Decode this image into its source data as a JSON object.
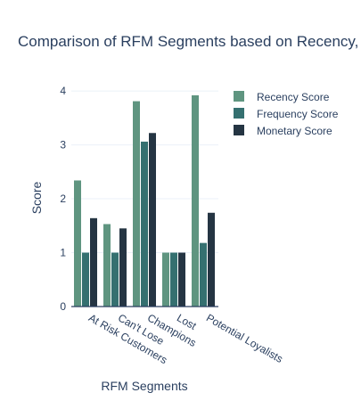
{
  "chart_data": {
    "type": "bar",
    "title": "Comparison of RFM Segments based on Recency, Frequency, and Monetary Scores",
    "xlabel": "RFM Segments",
    "ylabel": "Score",
    "categories": [
      "At Risk Customers",
      "Can't Lose",
      "Champions",
      "Lost",
      "Potential Loyalists"
    ],
    "yticks": [
      "0",
      "1",
      "2",
      "3",
      "4"
    ],
    "ylim": [
      0,
      4.2
    ],
    "grid": true,
    "legend_position": "top-right",
    "series": [
      {
        "name": "Recency Score",
        "color": "#5f9580",
        "values": [
          2.34,
          1.53,
          3.81,
          1.0,
          3.92
        ]
      },
      {
        "name": "Frequency Score",
        "color": "#357070",
        "values": [
          1.0,
          1.0,
          3.06,
          1.0,
          1.18
        ]
      },
      {
        "name": "Monetary Score",
        "color": "#253543",
        "values": [
          1.64,
          1.45,
          3.22,
          1.0,
          1.74
        ]
      }
    ]
  }
}
